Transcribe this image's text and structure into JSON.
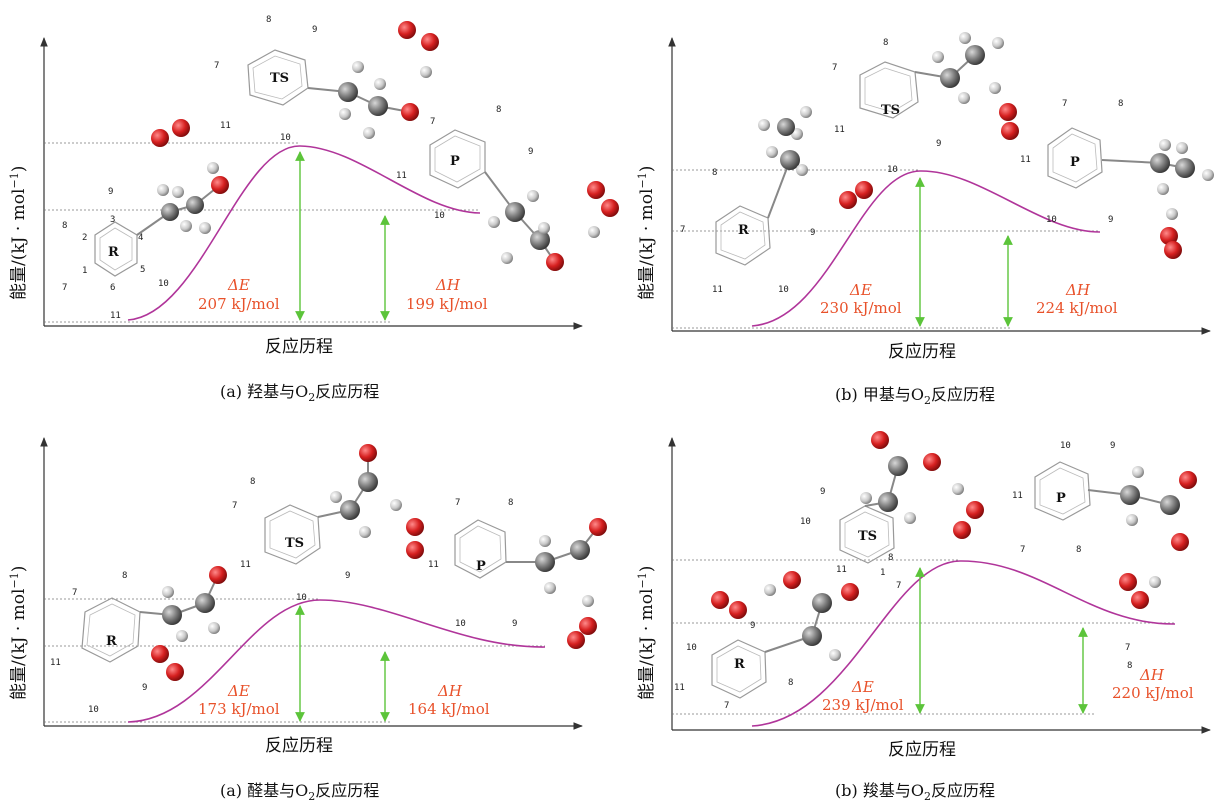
{
  "panels": [
    {
      "caption_prefix": "(a) 羟基与O",
      "caption_sub": "2",
      "caption_suffix": "反应历程",
      "ylabel": "能量/(kJ · mol",
      "ylabel_sup": "−1",
      "ylabel_end": ")",
      "xlabel": "反应历程",
      "dE_symbol": "ΔE",
      "dE_value": "207 kJ/mol",
      "dH_symbol": "ΔH",
      "dH_value": "199 kJ/mol",
      "R": "R",
      "TS": "TS",
      "P": "P"
    },
    {
      "caption_prefix": "(b) 甲基与O",
      "caption_sub": "2",
      "caption_suffix": "反应历程",
      "ylabel": "能量/(kJ · mol",
      "ylabel_sup": "−1",
      "ylabel_end": ")",
      "xlabel": "反应历程",
      "dE_symbol": "ΔE",
      "dE_value": "230 kJ/mol",
      "dH_symbol": "ΔH",
      "dH_value": "224 kJ/mol",
      "R": "R",
      "TS": "TS",
      "P": "P"
    },
    {
      "caption_prefix": "(a) 醛基与O",
      "caption_sub": "2",
      "caption_suffix": "反应历程",
      "ylabel": "能量/(kJ · mol",
      "ylabel_sup": "−1",
      "ylabel_end": ")",
      "xlabel": "反应历程",
      "dE_symbol": "ΔE",
      "dE_value": "173 kJ/mol",
      "dH_symbol": "ΔH",
      "dH_value": "164 kJ/mol",
      "R": "R",
      "TS": "TS",
      "P": "P"
    },
    {
      "caption_prefix": "(b) 羧基与O",
      "caption_sub": "2",
      "caption_suffix": "反应历程",
      "ylabel": "能量/(kJ · mol",
      "ylabel_sup": "−1",
      "ylabel_end": ")",
      "xlabel": "反应历程",
      "dE_symbol": "ΔE",
      "dE_value": "239 kJ/mol",
      "dH_symbol": "ΔH",
      "dH_value": "220 kJ/mol",
      "R": "R",
      "TS": "TS",
      "P": "P"
    }
  ],
  "colors": {
    "curve": "#b0359a",
    "arrow": "#5cc43a",
    "energy_text": "#e8512a",
    "oxygen": "#d62020",
    "carbon": "#707070",
    "hydrogen": "#cfcfcf"
  }
}
